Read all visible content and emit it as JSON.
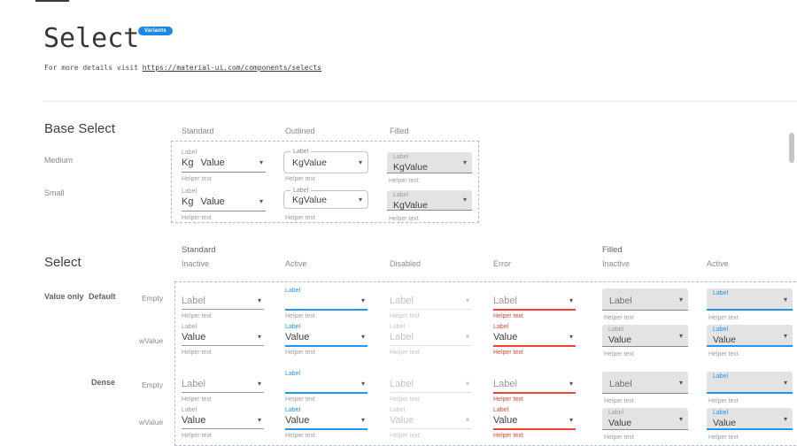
{
  "page": {
    "title": "Select",
    "badge": "Variants",
    "subtitle_prefix": "For more details visit ",
    "subtitle_link": "https://material-ui.com/components/selects"
  },
  "base_select": {
    "heading": "Base Select",
    "columns": [
      "Standard",
      "Outlined",
      "Filled"
    ],
    "rows": [
      "Medium",
      "Small"
    ],
    "cells": [
      {
        "variant": "standard",
        "size": "medium",
        "label": "Label",
        "adornment": "Kg",
        "value": "Value",
        "helper": "Helper text"
      },
      {
        "variant": "outlined",
        "size": "medium",
        "label": "Label",
        "adornment": "Kg",
        "value": "Value",
        "helper": "Helper text"
      },
      {
        "variant": "filled",
        "size": "medium",
        "label": "Label",
        "adornment": "Kg",
        "value": "Value",
        "helper": "Helper text"
      },
      {
        "variant": "standard",
        "size": "small",
        "label": "Label",
        "adornment": "Kg",
        "value": "Value",
        "helper": "Helper text"
      },
      {
        "variant": "outlined",
        "size": "small",
        "label": "Label",
        "adornment": "Kg",
        "value": "Value",
        "helper": "Helper text"
      },
      {
        "variant": "filled",
        "size": "small",
        "label": "Label",
        "adornment": "Kg",
        "value": "Value",
        "helper": "Helper text"
      }
    ]
  },
  "select_grid": {
    "heading": "Select",
    "group_headers": [
      "Standard",
      "Filled"
    ],
    "column_headers": [
      "Inactive",
      "Active",
      "Disabled",
      "Error",
      "Inactive",
      "Active"
    ],
    "row_group_label": "Value only",
    "density_labels": [
      "Default",
      "Dense"
    ],
    "sub_row_labels": [
      "Empty",
      "wValue"
    ],
    "rows": [
      {
        "key": "default-empty",
        "cells": [
          {
            "col": 0,
            "variant": "standard",
            "state": "inactive",
            "placeholder": "Label",
            "helper": "Helper text"
          },
          {
            "col": 1,
            "variant": "standard",
            "state": "active",
            "caption": "Label",
            "helper": "Helper text"
          },
          {
            "col": 2,
            "variant": "standard",
            "state": "disabled",
            "placeholder": "Label",
            "helper": "Helper text"
          },
          {
            "col": 3,
            "variant": "standard",
            "state": "error",
            "placeholder": "Label",
            "helper": "Helper text"
          },
          {
            "col": 4,
            "variant": "filled",
            "state": "inactive",
            "placeholder": "Label",
            "helper": "Helper text"
          },
          {
            "col": 5,
            "variant": "filled",
            "state": "active",
            "caption": "Label",
            "helper": "Helper text"
          }
        ]
      },
      {
        "key": "default-wvalue",
        "cells": [
          {
            "col": 0,
            "variant": "standard",
            "state": "inactive",
            "caption": "Label",
            "value": "Value",
            "helper": "Helper text"
          },
          {
            "col": 1,
            "variant": "standard",
            "state": "active",
            "caption": "Label",
            "value": "Value",
            "helper": "Helper text"
          },
          {
            "col": 2,
            "variant": "standard",
            "state": "disabled",
            "caption": "Label",
            "value": "Label",
            "helper": "Helper text"
          },
          {
            "col": 3,
            "variant": "standard",
            "state": "error",
            "caption": "Label",
            "value": "Value",
            "helper": "Helper text"
          },
          {
            "col": 4,
            "variant": "filled",
            "state": "inactive",
            "caption": "Label",
            "value": "Value",
            "helper": "Helper text"
          },
          {
            "col": 5,
            "variant": "filled",
            "state": "active",
            "caption": "Label",
            "value": "Value",
            "helper": "Helper text"
          }
        ]
      },
      {
        "key": "dense-empty",
        "cells": [
          {
            "col": 0,
            "variant": "standard",
            "state": "inactive",
            "placeholder": "Label",
            "helper": "Helper text"
          },
          {
            "col": 1,
            "variant": "standard",
            "state": "active",
            "caption": "Label",
            "helper": "Helper text"
          },
          {
            "col": 2,
            "variant": "standard",
            "state": "disabled",
            "placeholder": "Label",
            "helper": "Helper text"
          },
          {
            "col": 3,
            "variant": "standard",
            "state": "error",
            "placeholder": "Label",
            "helper": "Helper text"
          },
          {
            "col": 4,
            "variant": "filled",
            "state": "inactive",
            "placeholder": "Label",
            "helper": "Helper text"
          },
          {
            "col": 5,
            "variant": "filled",
            "state": "active",
            "caption": "Label",
            "helper": "Helper text"
          }
        ]
      },
      {
        "key": "dense-wvalue",
        "cells": [
          {
            "col": 0,
            "variant": "standard",
            "state": "inactive",
            "caption": "Label",
            "value": "Value",
            "helper": "Helper text"
          },
          {
            "col": 1,
            "variant": "standard",
            "state": "active",
            "caption": "Label",
            "value": "Value",
            "helper": "Helper text"
          },
          {
            "col": 2,
            "variant": "standard",
            "state": "disabled",
            "caption": "Label",
            "value": "Value",
            "helper": "Helper text"
          },
          {
            "col": 3,
            "variant": "standard",
            "state": "error",
            "caption": "Label",
            "value": "Value",
            "helper": "Helper text"
          },
          {
            "col": 4,
            "variant": "filled",
            "state": "inactive",
            "caption": "Label",
            "value": "Value",
            "helper": "Helper text"
          },
          {
            "col": 5,
            "variant": "filled",
            "state": "active",
            "caption": "Label",
            "value": "Value",
            "helper": "Helper text"
          }
        ]
      }
    ]
  },
  "icons": {
    "dropdown_caret": "▾"
  },
  "colors": {
    "accent_blue": "#2196F3",
    "error_red": "#F44336",
    "badge_bg": "#1E88E5",
    "dashed_border": "#B3B9EF",
    "filled_bg": "#E3E3E3"
  }
}
